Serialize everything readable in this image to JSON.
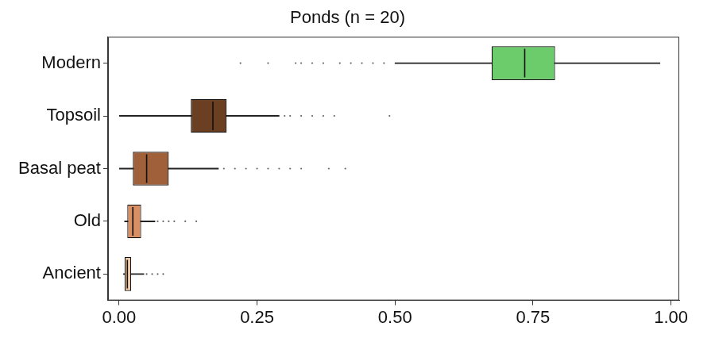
{
  "chart_data": {
    "type": "boxplot",
    "title": "Ponds (n = 20)",
    "orientation": "horizontal",
    "categories": [
      "Modern",
      "Topsoil",
      "Basal peat",
      "Old",
      "Ancient"
    ],
    "colors": [
      "#6ccc6c",
      "#6b3f22",
      "#a0603a",
      "#d88f63",
      "#efc9a6"
    ],
    "whisker_low": [
      0.5,
      0.0,
      0.0,
      0.01,
      0.008
    ],
    "q1": [
      0.675,
      0.13,
      0.025,
      0.015,
      0.01
    ],
    "median": [
      0.735,
      0.17,
      0.05,
      0.025,
      0.015
    ],
    "q3": [
      0.79,
      0.195,
      0.09,
      0.04,
      0.022
    ],
    "whisker_high": [
      0.98,
      0.29,
      0.18,
      0.065,
      0.045
    ],
    "outliers": [
      [
        0.22,
        0.27,
        0.32,
        0.33,
        0.35,
        0.37,
        0.4,
        0.42,
        0.44,
        0.46,
        0.48
      ],
      [
        0.3,
        0.31,
        0.33,
        0.35,
        0.37,
        0.39,
        0.49
      ],
      [
        0.19,
        0.21,
        0.23,
        0.25,
        0.27,
        0.29,
        0.31,
        0.33,
        0.38,
        0.41
      ],
      [
        0.07,
        0.08,
        0.09,
        0.1,
        0.12,
        0.14
      ],
      [
        0.05,
        0.06,
        0.07,
        0.08
      ]
    ],
    "xlim": [
      -0.02,
      1.015
    ],
    "xticks": [
      {
        "value": 0,
        "label": "0.00"
      },
      {
        "value": 0.25,
        "label": "0.25"
      },
      {
        "value": 0.5,
        "label": "0.50"
      },
      {
        "value": 0.75,
        "label": "0.75"
      },
      {
        "value": 1,
        "label": "1.00"
      }
    ],
    "grid": false
  }
}
